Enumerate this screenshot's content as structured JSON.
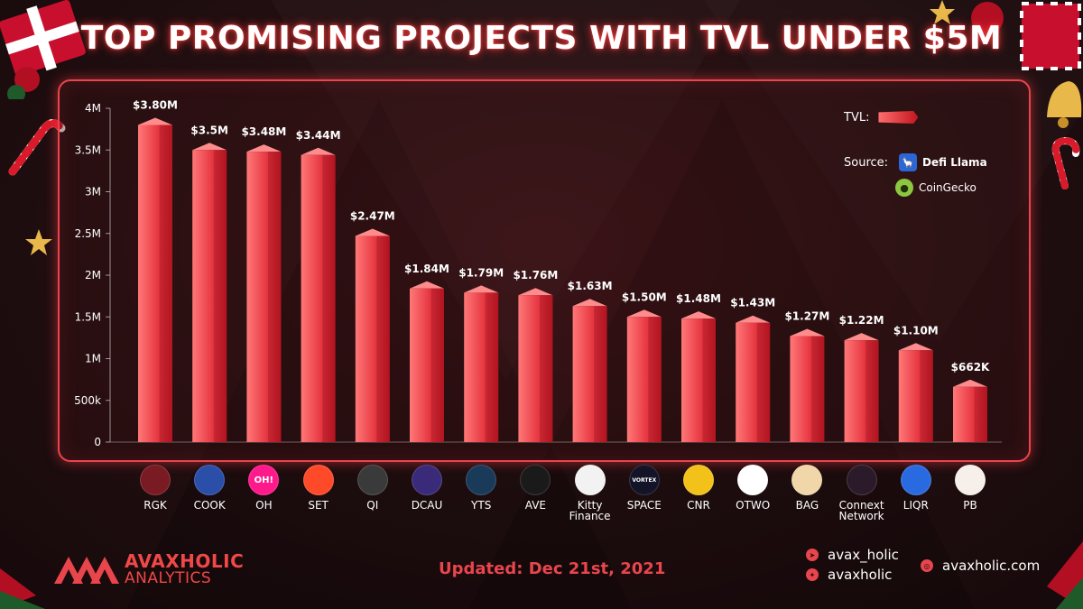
{
  "title": "TOP PROMISING PROJECTS WITH TVL UNDER $5M",
  "legend": {
    "label": "TVL:",
    "source_label": "Source:",
    "sources": [
      "Defi Llama",
      "CoinGecko"
    ]
  },
  "chart_data": {
    "type": "bar",
    "categories": [
      "RGK",
      "COOK",
      "OH",
      "SET",
      "QI",
      "DCAU",
      "YTS",
      "AVE",
      "Kitty Finance",
      "SPACE",
      "CNR",
      "OTWO",
      "BAG",
      "Connext Network",
      "LIQR",
      "PB"
    ],
    "values": [
      3800000,
      3500000,
      3480000,
      3440000,
      2470000,
      1840000,
      1790000,
      1760000,
      1630000,
      1500000,
      1480000,
      1430000,
      1270000,
      1220000,
      1100000,
      662000
    ],
    "value_labels": [
      "$3.80M",
      "$3.5M",
      "$3.48M",
      "$3.44M",
      "$2.47M",
      "$1.84M",
      "$1.79M",
      "$1.76M",
      "$1.63M",
      "$1.50M",
      "$1.48M",
      "$1.43M",
      "$1.27M",
      "$1.22M",
      "$1.10M",
      "$662K"
    ],
    "yticks": [
      0,
      500000,
      1000000,
      1500000,
      2000000,
      2500000,
      3000000,
      3500000,
      4000000
    ],
    "ytick_labels": [
      "0",
      "500k",
      "1M",
      "1.5M",
      "2M",
      "2.5M",
      "3M",
      "3.5M",
      "4M"
    ],
    "ylim": [
      0,
      4000000
    ],
    "xlabel": "",
    "ylabel": "",
    "series_name": "TVL"
  },
  "projects": [
    {
      "label": "RGK",
      "icon": "wolf-icon",
      "color": "#7a1a22"
    },
    {
      "label": "COOK",
      "icon": "cook-icon",
      "color": "#2b4fa8"
    },
    {
      "label": "OH",
      "icon": "oh-icon",
      "color": "#ff1a8c",
      "text": "OH!"
    },
    {
      "label": "SET",
      "icon": "flame-icon",
      "color": "#ff4a2a"
    },
    {
      "label": "QI",
      "icon": "qi-icon",
      "color": "#3a3a3a"
    },
    {
      "label": "DCAU",
      "icon": "dragon-icon",
      "color": "#3a2a7a"
    },
    {
      "label": "YTS",
      "icon": "yts-icon",
      "color": "#1a3a5a"
    },
    {
      "label": "AVE",
      "icon": "triangle-icon",
      "color": "#1a1a1a"
    },
    {
      "label": "Kitty\nFinance",
      "icon": "cat-icon",
      "color": "#f2f2f2"
    },
    {
      "label": "SPACE",
      "icon": "vortex-icon",
      "color": "#141428",
      "text": "VORTEX"
    },
    {
      "label": "CNR",
      "icon": "canary-icon",
      "color": "#f2c21a"
    },
    {
      "label": "OTWO",
      "icon": "o2-icon",
      "color": "#ffffff"
    },
    {
      "label": "BAG",
      "icon": "bag-icon",
      "color": "#f0d6a8"
    },
    {
      "label": "Connext\nNetwork",
      "icon": "connext-icon",
      "color": "#2a1a2a"
    },
    {
      "label": "LIQR",
      "icon": "liqr-icon",
      "color": "#2a6ae0"
    },
    {
      "label": "PB",
      "icon": "pig-icon",
      "color": "#f7f0ea"
    }
  ],
  "footer": {
    "brand_name": "AVAXHOLIC",
    "brand_sub": "ANALYTICS",
    "updated": "Updated: Dec 21st, 2021",
    "telegram": "avax_holic",
    "twitter": "avaxholic",
    "website": "avaxholic.com"
  },
  "colors": {
    "accent": "#e8454d",
    "bar_light": "#ff6b6b",
    "bar_dark": "#b8111c"
  }
}
